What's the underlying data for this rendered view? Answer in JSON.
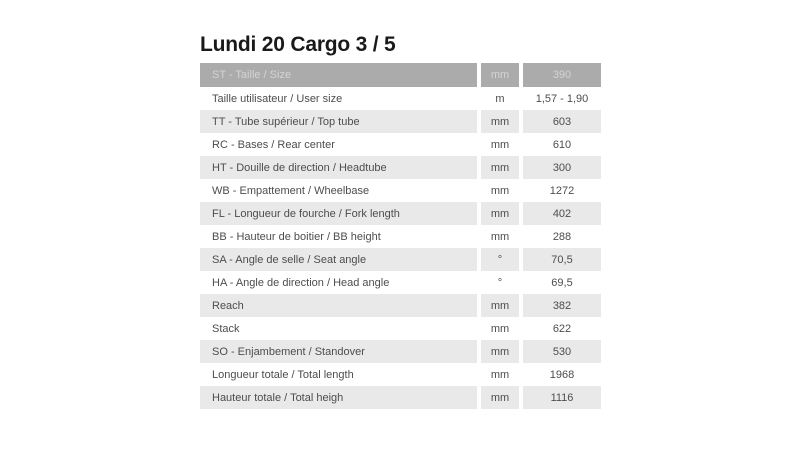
{
  "title": "Lundi 20 Cargo 3 / 5",
  "table": {
    "header": {
      "label": "ST - Taille / Size",
      "unit": "mm",
      "value": "390"
    },
    "rows": [
      {
        "label": "Taille utilisateur / User size",
        "unit": "m",
        "value": "1,57 - 1,90"
      },
      {
        "label": "TT - Tube supérieur / Top tube",
        "unit": "mm",
        "value": "603"
      },
      {
        "label": "RC - Bases / Rear center",
        "unit": "mm",
        "value": "610"
      },
      {
        "label": "HT - Douille de direction / Headtube",
        "unit": "mm",
        "value": "300"
      },
      {
        "label": "WB - Empattement / Wheelbase",
        "unit": "mm",
        "value": "1272"
      },
      {
        "label": "FL - Longueur de fourche / Fork length",
        "unit": "mm",
        "value": "402"
      },
      {
        "label": "BB - Hauteur de boitier / BB height",
        "unit": "mm",
        "value": "288"
      },
      {
        "label": "SA - Angle de selle / Seat angle",
        "unit": "°",
        "value": "70,5"
      },
      {
        "label": "HA - Angle de direction / Head angle",
        "unit": "°",
        "value": "69,5"
      },
      {
        "label": "Reach",
        "unit": "mm",
        "value": "382"
      },
      {
        "label": "Stack",
        "unit": "mm",
        "value": "622"
      },
      {
        "label": "SO - Enjambement / Standover",
        "unit": "mm",
        "value": "530"
      },
      {
        "label": "Longueur totale / Total length",
        "unit": "mm",
        "value": "1968"
      },
      {
        "label": "Hauteur totale / Total heigh",
        "unit": "mm",
        "value": "1116"
      }
    ]
  },
  "colors": {
    "page_bg": "#ffffff",
    "title_text": "#1a1a1a",
    "header_bg": "#ababab",
    "header_text": "#d4d4d4",
    "stripe_bg": "#e9e9e9",
    "row_text": "#4d4d4d"
  },
  "chart_data": {
    "type": "table",
    "title": "Lundi 20 Cargo 3 / 5",
    "columns": [
      "ST - Taille / Size",
      "mm",
      "390"
    ],
    "rows": [
      [
        "Taille utilisateur / User size",
        "m",
        "1,57 - 1,90"
      ],
      [
        "TT - Tube supérieur / Top tube",
        "mm",
        "603"
      ],
      [
        "RC - Bases / Rear center",
        "mm",
        "610"
      ],
      [
        "HT - Douille de direction / Headtube",
        "mm",
        "300"
      ],
      [
        "WB - Empattement / Wheelbase",
        "mm",
        "1272"
      ],
      [
        "FL - Longueur de fourche / Fork length",
        "mm",
        "402"
      ],
      [
        "BB - Hauteur de boitier / BB height",
        "mm",
        "288"
      ],
      [
        "SA - Angle de selle / Seat angle",
        "°",
        "70,5"
      ],
      [
        "HA - Angle de direction / Head angle",
        "°",
        "69,5"
      ],
      [
        "Reach",
        "mm",
        "382"
      ],
      [
        "Stack",
        "mm",
        "622"
      ],
      [
        "SO - Enjambement / Standover",
        "mm",
        "530"
      ],
      [
        "Longueur totale / Total length",
        "mm",
        "1968"
      ],
      [
        "Hauteur totale / Total heigh",
        "mm",
        "1116"
      ]
    ]
  }
}
